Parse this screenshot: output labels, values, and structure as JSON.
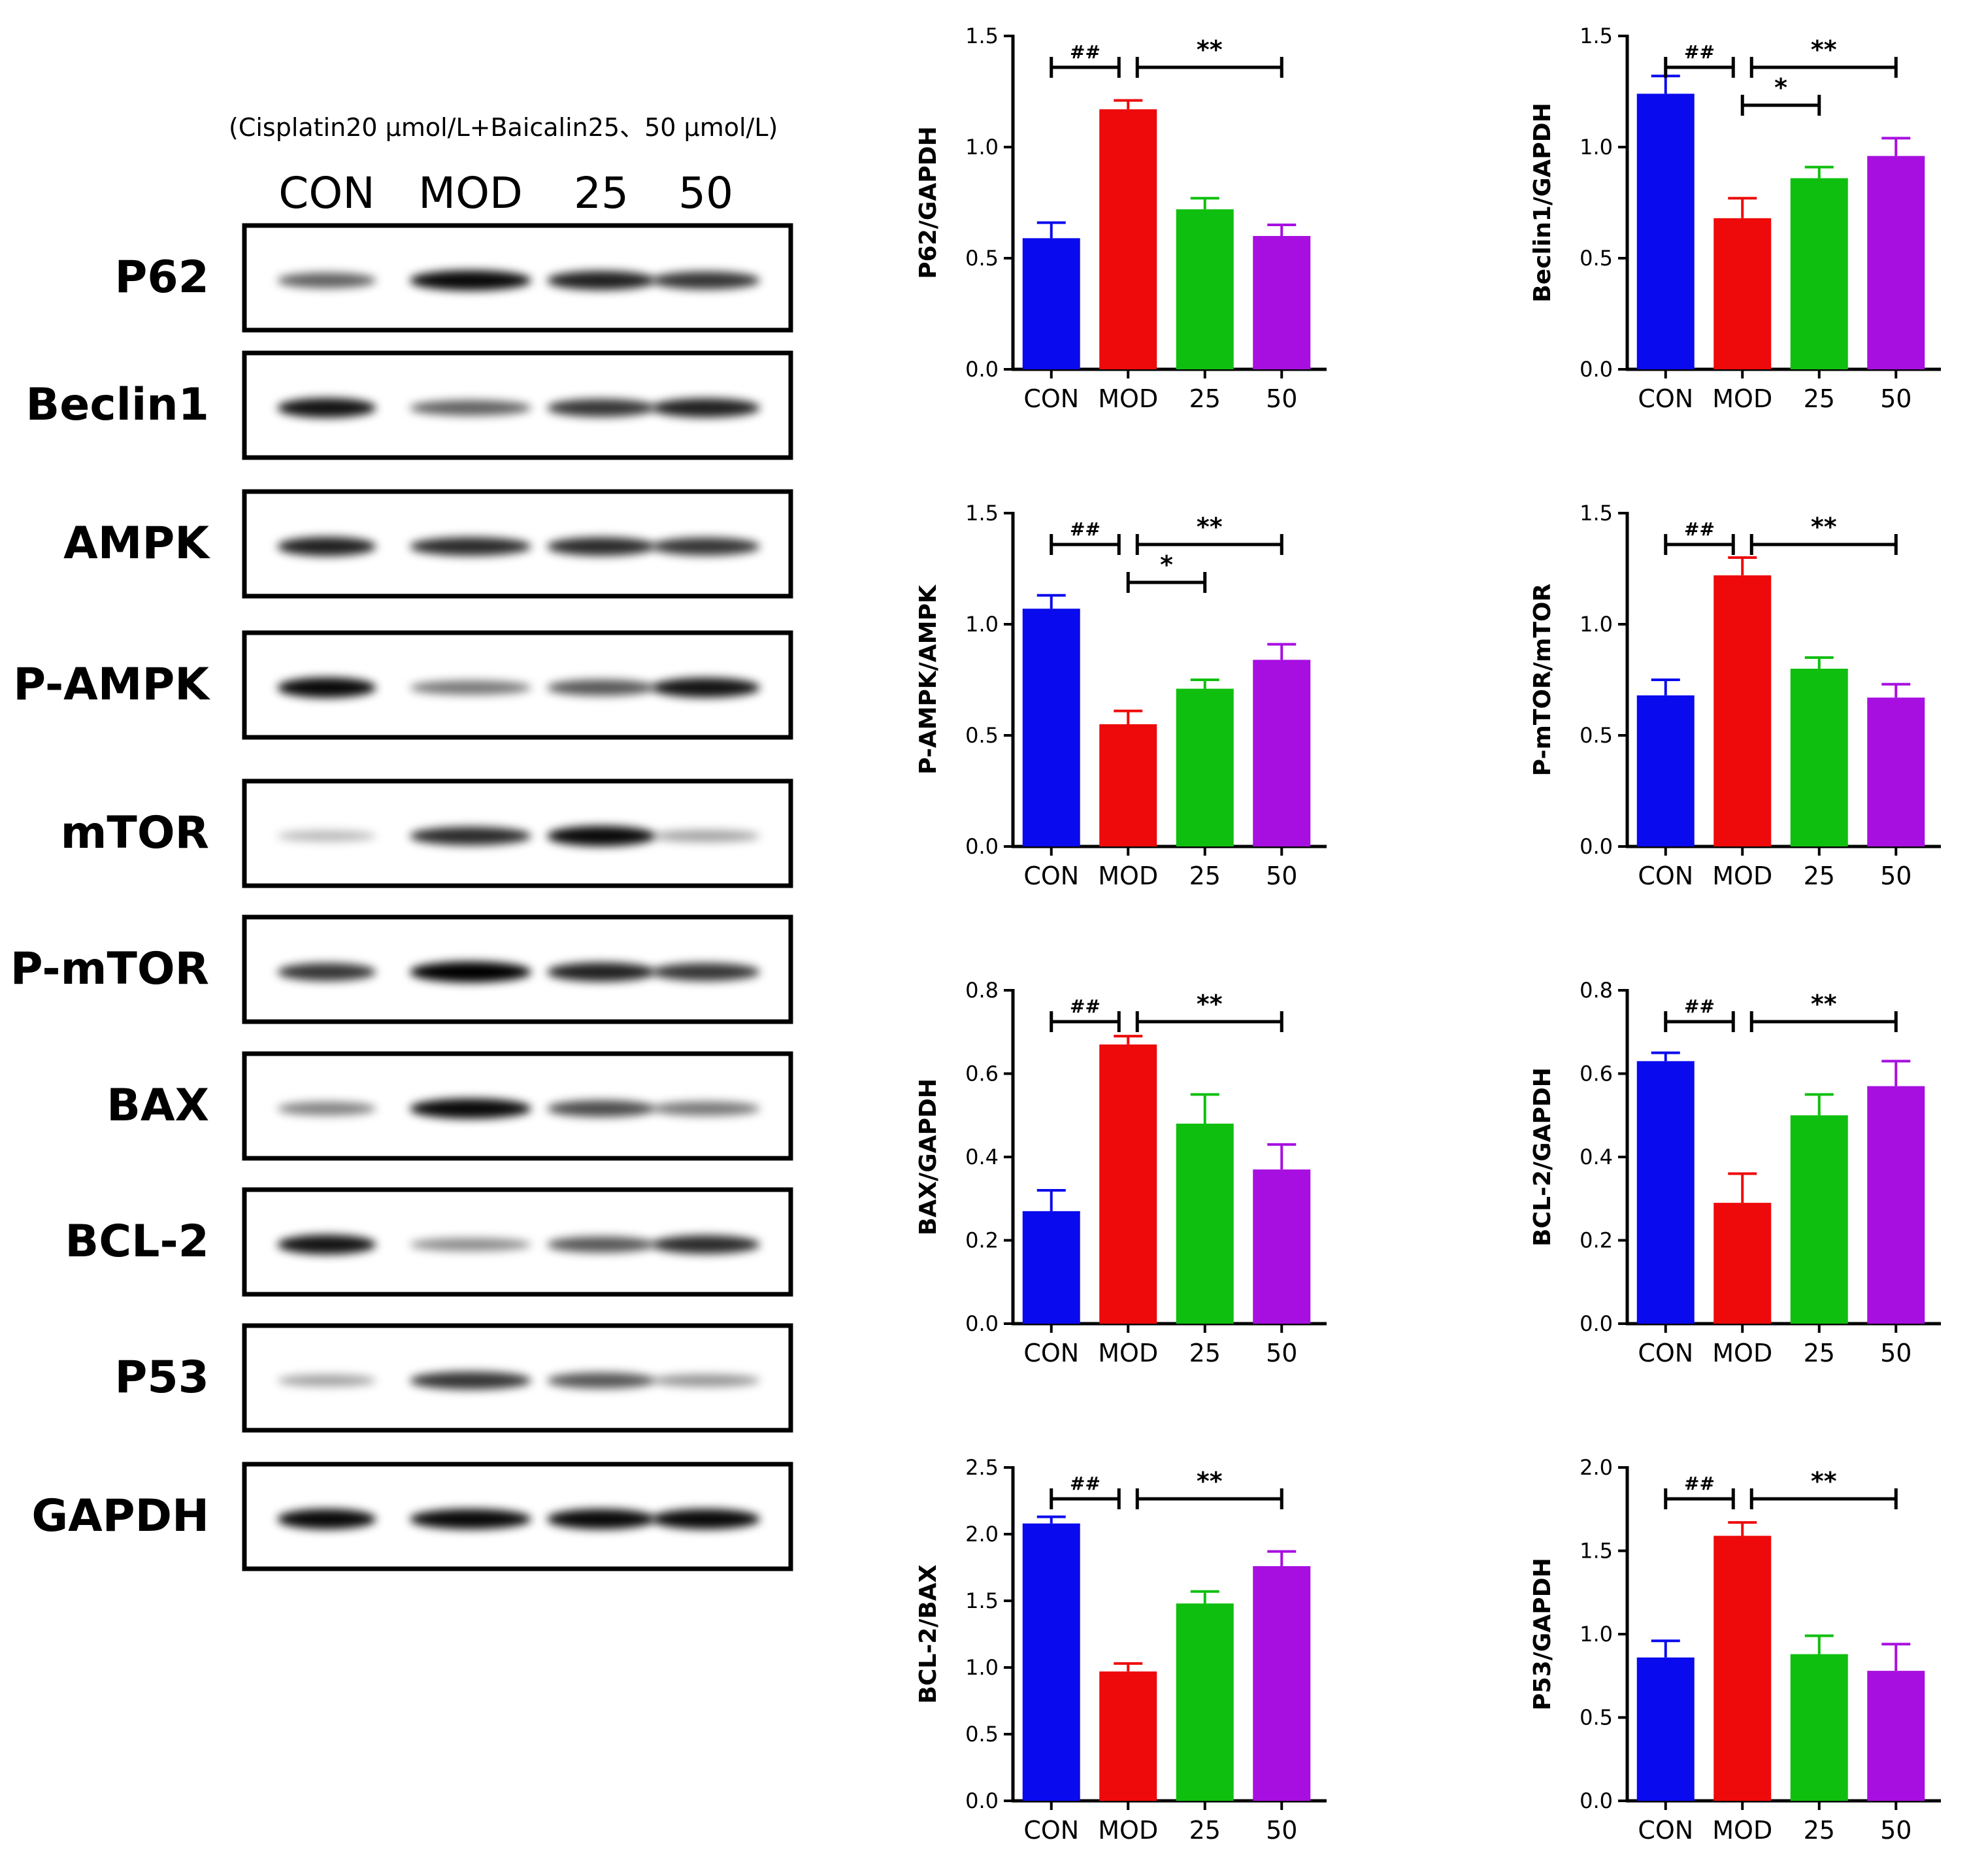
{
  "blot": {
    "treatment_label": "(Cisplatin20 μmol/L+Baicalin25、50 μmol/L)",
    "lanes": [
      "CON",
      "MOD",
      "25",
      "50"
    ],
    "proteins": [
      "P62",
      "Beclin1",
      "AMPK",
      "P-AMPK",
      "mTOR",
      "P-mTOR",
      "BAX",
      "BCL-2",
      "P53",
      "GAPDH"
    ],
    "band_intensity": [
      [
        0.55,
        0.95,
        0.85,
        0.75
      ],
      [
        0.9,
        0.55,
        0.75,
        0.85
      ],
      [
        0.85,
        0.8,
        0.8,
        0.75
      ],
      [
        0.95,
        0.45,
        0.6,
        0.9
      ],
      [
        0.15,
        0.8,
        0.95,
        0.25
      ],
      [
        0.75,
        1.0,
        0.85,
        0.75
      ],
      [
        0.4,
        0.95,
        0.65,
        0.45
      ],
      [
        0.9,
        0.35,
        0.6,
        0.8
      ],
      [
        0.25,
        0.75,
        0.6,
        0.3
      ],
      [
        0.95,
        0.95,
        0.95,
        0.95
      ]
    ]
  },
  "colors": {
    "CON": "#0a0aee",
    "MOD": "#ee0a0a",
    "25": "#0fbf0f",
    "50": "#a70fe0"
  },
  "chart_data": [
    {
      "type": "bar",
      "ylabel": "P62/GAPDH",
      "categories": [
        "CON",
        "MOD",
        "25",
        "50"
      ],
      "values": [
        0.59,
        1.17,
        0.72,
        0.6
      ],
      "errors": [
        0.07,
        0.04,
        0.05,
        0.05
      ],
      "ylim": [
        0,
        1.5
      ],
      "yticks": [
        "0.0",
        "0.5",
        "1.0",
        "1.5"
      ],
      "brackets": [
        {
          "from": 0,
          "to": 1,
          "label": "##",
          "level": 0
        },
        {
          "from": 1,
          "to": 3,
          "label": "**",
          "level": 0
        }
      ]
    },
    {
      "type": "bar",
      "ylabel": "Beclin1/GAPDH",
      "categories": [
        "CON",
        "MOD",
        "25",
        "50"
      ],
      "values": [
        1.24,
        0.68,
        0.86,
        0.96
      ],
      "errors": [
        0.08,
        0.09,
        0.05,
        0.08
      ],
      "ylim": [
        0,
        1.5
      ],
      "yticks": [
        "0.0",
        "0.5",
        "1.0",
        "1.5"
      ],
      "brackets": [
        {
          "from": 0,
          "to": 1,
          "label": "##",
          "level": 0
        },
        {
          "from": 1,
          "to": 3,
          "label": "**",
          "level": 0
        },
        {
          "from": 1,
          "to": 2,
          "label": "*",
          "level": 1
        }
      ]
    },
    {
      "type": "bar",
      "ylabel": "P-AMPK/AMPK",
      "categories": [
        "CON",
        "MOD",
        "25",
        "50"
      ],
      "values": [
        1.07,
        0.55,
        0.71,
        0.84
      ],
      "errors": [
        0.06,
        0.06,
        0.04,
        0.07
      ],
      "ylim": [
        0,
        1.5
      ],
      "yticks": [
        "0.0",
        "0.5",
        "1.0",
        "1.5"
      ],
      "brackets": [
        {
          "from": 0,
          "to": 1,
          "label": "##",
          "level": 0
        },
        {
          "from": 1,
          "to": 3,
          "label": "**",
          "level": 0
        },
        {
          "from": 1,
          "to": 2,
          "label": "*",
          "level": 1
        }
      ]
    },
    {
      "type": "bar",
      "ylabel": "P-mTOR/mTOR",
      "categories": [
        "CON",
        "MOD",
        "25",
        "50"
      ],
      "values": [
        0.68,
        1.22,
        0.8,
        0.67
      ],
      "errors": [
        0.07,
        0.08,
        0.05,
        0.06
      ],
      "ylim": [
        0,
        1.5
      ],
      "yticks": [
        "0.0",
        "0.5",
        "1.0",
        "1.5"
      ],
      "brackets": [
        {
          "from": 0,
          "to": 1,
          "label": "##",
          "level": 0
        },
        {
          "from": 1,
          "to": 3,
          "label": "**",
          "level": 0
        }
      ]
    },
    {
      "type": "bar",
      "ylabel": "BAX/GAPDH",
      "categories": [
        "CON",
        "MOD",
        "25",
        "50"
      ],
      "values": [
        0.27,
        0.67,
        0.48,
        0.37
      ],
      "errors": [
        0.05,
        0.02,
        0.07,
        0.06
      ],
      "ylim": [
        0,
        0.8
      ],
      "yticks": [
        "0.0",
        "0.2",
        "0.4",
        "0.6",
        "0.8"
      ],
      "brackets": [
        {
          "from": 0,
          "to": 1,
          "label": "##",
          "level": 0
        },
        {
          "from": 1,
          "to": 3,
          "label": "**",
          "level": 0
        }
      ]
    },
    {
      "type": "bar",
      "ylabel": "BCL-2/GAPDH",
      "categories": [
        "CON",
        "MOD",
        "25",
        "50"
      ],
      "values": [
        0.63,
        0.29,
        0.5,
        0.57
      ],
      "errors": [
        0.02,
        0.07,
        0.05,
        0.06
      ],
      "ylim": [
        0,
        0.8
      ],
      "yticks": [
        "0.0",
        "0.2",
        "0.4",
        "0.6",
        "0.8"
      ],
      "brackets": [
        {
          "from": 0,
          "to": 1,
          "label": "##",
          "level": 0
        },
        {
          "from": 1,
          "to": 3,
          "label": "**",
          "level": 0
        }
      ]
    },
    {
      "type": "bar",
      "ylabel": "BCL-2/BAX",
      "categories": [
        "CON",
        "MOD",
        "25",
        "50"
      ],
      "values": [
        2.08,
        0.97,
        1.48,
        1.76
      ],
      "errors": [
        0.05,
        0.06,
        0.09,
        0.11
      ],
      "ylim": [
        0,
        2.5
      ],
      "yticks": [
        "0.0",
        "0.5",
        "1.0",
        "1.5",
        "2.0",
        "2.5"
      ],
      "brackets": [
        {
          "from": 0,
          "to": 1,
          "label": "##",
          "level": 0
        },
        {
          "from": 1,
          "to": 3,
          "label": "**",
          "level": 0
        }
      ]
    },
    {
      "type": "bar",
      "ylabel": "P53/GAPDH",
      "categories": [
        "CON",
        "MOD",
        "25",
        "50"
      ],
      "values": [
        0.86,
        1.59,
        0.88,
        0.78
      ],
      "errors": [
        0.1,
        0.08,
        0.11,
        0.16
      ],
      "ylim": [
        0,
        2.0
      ],
      "yticks": [
        "0.0",
        "0.5",
        "1.0",
        "1.5",
        "2.0"
      ],
      "brackets": [
        {
          "from": 0,
          "to": 1,
          "label": "##",
          "level": 0
        },
        {
          "from": 1,
          "to": 3,
          "label": "**",
          "level": 0
        }
      ]
    }
  ]
}
